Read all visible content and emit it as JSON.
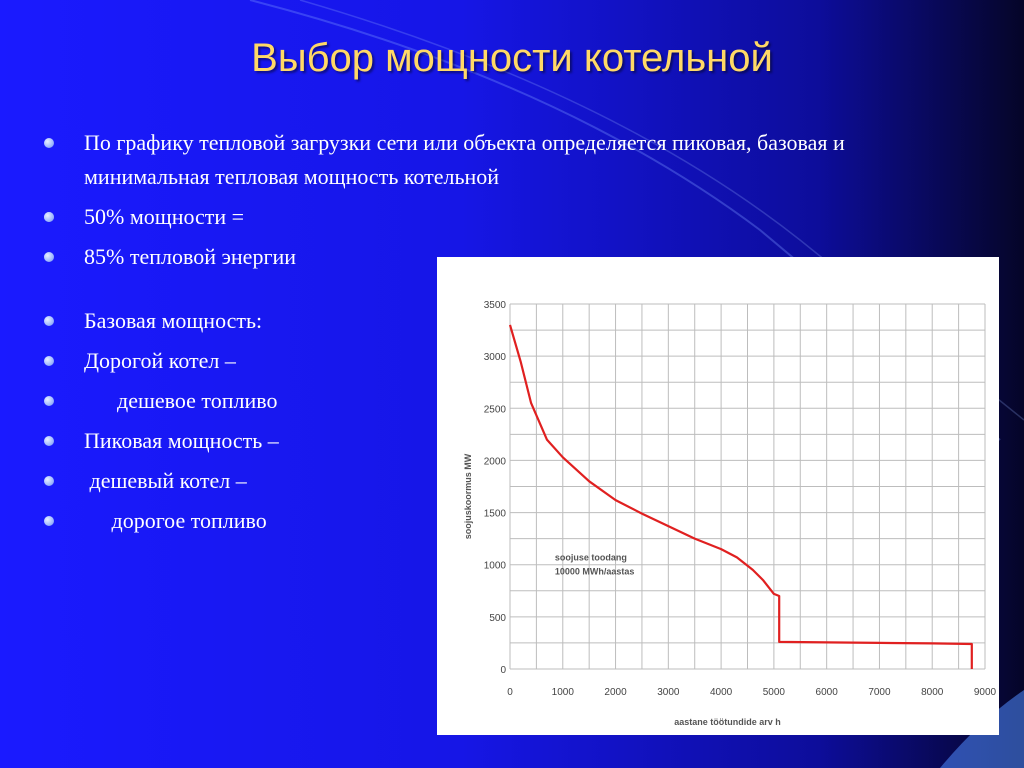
{
  "slide": {
    "title": "Выбор мощности котельной",
    "bullets": [
      {
        "text": "По графику тепловой загрузки сети или объекта определяется пиковая, базовая и минимальная тепловая мощность котельной"
      },
      {
        "text": ""
      },
      {
        "text": "50% мощности ="
      },
      {
        "text": "85% тепловой энергии"
      },
      {
        "text": "Базовая мощность:"
      },
      {
        "text": "Дорогой котел –"
      },
      {
        "text": "      дешевое топливо"
      },
      {
        "text": "Пиковая мощность –"
      },
      {
        "text": " дешевый котел –"
      },
      {
        "text": "     дорогое топливо"
      }
    ]
  },
  "colors": {
    "title": "#ffd966",
    "text": "#ffffff",
    "curve": "#e02020",
    "grid": "#bdbdbd"
  },
  "chart_data": {
    "type": "line",
    "xlabel": "aastane töötundide arv h",
    "ylabel": "soojuskoormus MW",
    "annotation": [
      "soojuse toodang",
      "10000 MWh/aastas"
    ],
    "xlim": [
      0,
      9000
    ],
    "ylim": [
      0,
      3500
    ],
    "x_ticks": [
      0,
      1000,
      2000,
      3000,
      4000,
      5000,
      6000,
      7000,
      8000,
      9000
    ],
    "y_ticks": [
      0,
      500,
      1000,
      1500,
      2000,
      2500,
      3000,
      3500
    ],
    "series": [
      {
        "x": [
          0,
          200,
          400,
          700,
          1000,
          1500,
          2000,
          2500,
          3000,
          3500,
          4000,
          4300,
          4600,
          4800,
          5000,
          5100,
          5100,
          6000,
          7000,
          8000,
          8750,
          8750
        ],
        "y": [
          3300,
          2950,
          2550,
          2200,
          2030,
          1800,
          1620,
          1490,
          1370,
          1250,
          1150,
          1070,
          950,
          850,
          720,
          700,
          260,
          255,
          250,
          245,
          240,
          0
        ]
      }
    ]
  }
}
